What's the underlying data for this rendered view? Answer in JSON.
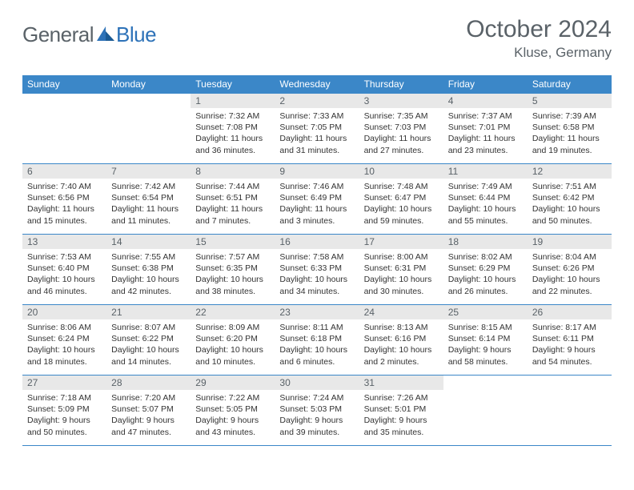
{
  "logo": {
    "general": "General",
    "blue": "Blue",
    "icon_color": "#2d72b8"
  },
  "title": {
    "month_year": "October 2024",
    "location": "Kluse, Germany"
  },
  "colors": {
    "header_bg": "#3b87c8",
    "header_text": "#ffffff",
    "daynum_bg": "#e8e8e8",
    "daynum_text": "#5a6268",
    "body_text": "#333333",
    "rule": "#3b87c8"
  },
  "day_headers": [
    "Sunday",
    "Monday",
    "Tuesday",
    "Wednesday",
    "Thursday",
    "Friday",
    "Saturday"
  ],
  "weeks": [
    [
      {
        "blank": true
      },
      {
        "blank": true
      },
      {
        "num": "1",
        "sunrise": "Sunrise: 7:32 AM",
        "sunset": "Sunset: 7:08 PM",
        "daylight": "Daylight: 11 hours and 36 minutes."
      },
      {
        "num": "2",
        "sunrise": "Sunrise: 7:33 AM",
        "sunset": "Sunset: 7:05 PM",
        "daylight": "Daylight: 11 hours and 31 minutes."
      },
      {
        "num": "3",
        "sunrise": "Sunrise: 7:35 AM",
        "sunset": "Sunset: 7:03 PM",
        "daylight": "Daylight: 11 hours and 27 minutes."
      },
      {
        "num": "4",
        "sunrise": "Sunrise: 7:37 AM",
        "sunset": "Sunset: 7:01 PM",
        "daylight": "Daylight: 11 hours and 23 minutes."
      },
      {
        "num": "5",
        "sunrise": "Sunrise: 7:39 AM",
        "sunset": "Sunset: 6:58 PM",
        "daylight": "Daylight: 11 hours and 19 minutes."
      }
    ],
    [
      {
        "num": "6",
        "sunrise": "Sunrise: 7:40 AM",
        "sunset": "Sunset: 6:56 PM",
        "daylight": "Daylight: 11 hours and 15 minutes."
      },
      {
        "num": "7",
        "sunrise": "Sunrise: 7:42 AM",
        "sunset": "Sunset: 6:54 PM",
        "daylight": "Daylight: 11 hours and 11 minutes."
      },
      {
        "num": "8",
        "sunrise": "Sunrise: 7:44 AM",
        "sunset": "Sunset: 6:51 PM",
        "daylight": "Daylight: 11 hours and 7 minutes."
      },
      {
        "num": "9",
        "sunrise": "Sunrise: 7:46 AM",
        "sunset": "Sunset: 6:49 PM",
        "daylight": "Daylight: 11 hours and 3 minutes."
      },
      {
        "num": "10",
        "sunrise": "Sunrise: 7:48 AM",
        "sunset": "Sunset: 6:47 PM",
        "daylight": "Daylight: 10 hours and 59 minutes."
      },
      {
        "num": "11",
        "sunrise": "Sunrise: 7:49 AM",
        "sunset": "Sunset: 6:44 PM",
        "daylight": "Daylight: 10 hours and 55 minutes."
      },
      {
        "num": "12",
        "sunrise": "Sunrise: 7:51 AM",
        "sunset": "Sunset: 6:42 PM",
        "daylight": "Daylight: 10 hours and 50 minutes."
      }
    ],
    [
      {
        "num": "13",
        "sunrise": "Sunrise: 7:53 AM",
        "sunset": "Sunset: 6:40 PM",
        "daylight": "Daylight: 10 hours and 46 minutes."
      },
      {
        "num": "14",
        "sunrise": "Sunrise: 7:55 AM",
        "sunset": "Sunset: 6:38 PM",
        "daylight": "Daylight: 10 hours and 42 minutes."
      },
      {
        "num": "15",
        "sunrise": "Sunrise: 7:57 AM",
        "sunset": "Sunset: 6:35 PM",
        "daylight": "Daylight: 10 hours and 38 minutes."
      },
      {
        "num": "16",
        "sunrise": "Sunrise: 7:58 AM",
        "sunset": "Sunset: 6:33 PM",
        "daylight": "Daylight: 10 hours and 34 minutes."
      },
      {
        "num": "17",
        "sunrise": "Sunrise: 8:00 AM",
        "sunset": "Sunset: 6:31 PM",
        "daylight": "Daylight: 10 hours and 30 minutes."
      },
      {
        "num": "18",
        "sunrise": "Sunrise: 8:02 AM",
        "sunset": "Sunset: 6:29 PM",
        "daylight": "Daylight: 10 hours and 26 minutes."
      },
      {
        "num": "19",
        "sunrise": "Sunrise: 8:04 AM",
        "sunset": "Sunset: 6:26 PM",
        "daylight": "Daylight: 10 hours and 22 minutes."
      }
    ],
    [
      {
        "num": "20",
        "sunrise": "Sunrise: 8:06 AM",
        "sunset": "Sunset: 6:24 PM",
        "daylight": "Daylight: 10 hours and 18 minutes."
      },
      {
        "num": "21",
        "sunrise": "Sunrise: 8:07 AM",
        "sunset": "Sunset: 6:22 PM",
        "daylight": "Daylight: 10 hours and 14 minutes."
      },
      {
        "num": "22",
        "sunrise": "Sunrise: 8:09 AM",
        "sunset": "Sunset: 6:20 PM",
        "daylight": "Daylight: 10 hours and 10 minutes."
      },
      {
        "num": "23",
        "sunrise": "Sunrise: 8:11 AM",
        "sunset": "Sunset: 6:18 PM",
        "daylight": "Daylight: 10 hours and 6 minutes."
      },
      {
        "num": "24",
        "sunrise": "Sunrise: 8:13 AM",
        "sunset": "Sunset: 6:16 PM",
        "daylight": "Daylight: 10 hours and 2 minutes."
      },
      {
        "num": "25",
        "sunrise": "Sunrise: 8:15 AM",
        "sunset": "Sunset: 6:14 PM",
        "daylight": "Daylight: 9 hours and 58 minutes."
      },
      {
        "num": "26",
        "sunrise": "Sunrise: 8:17 AM",
        "sunset": "Sunset: 6:11 PM",
        "daylight": "Daylight: 9 hours and 54 minutes."
      }
    ],
    [
      {
        "num": "27",
        "sunrise": "Sunrise: 7:18 AM",
        "sunset": "Sunset: 5:09 PM",
        "daylight": "Daylight: 9 hours and 50 minutes."
      },
      {
        "num": "28",
        "sunrise": "Sunrise: 7:20 AM",
        "sunset": "Sunset: 5:07 PM",
        "daylight": "Daylight: 9 hours and 47 minutes."
      },
      {
        "num": "29",
        "sunrise": "Sunrise: 7:22 AM",
        "sunset": "Sunset: 5:05 PM",
        "daylight": "Daylight: 9 hours and 43 minutes."
      },
      {
        "num": "30",
        "sunrise": "Sunrise: 7:24 AM",
        "sunset": "Sunset: 5:03 PM",
        "daylight": "Daylight: 9 hours and 39 minutes."
      },
      {
        "num": "31",
        "sunrise": "Sunrise: 7:26 AM",
        "sunset": "Sunset: 5:01 PM",
        "daylight": "Daylight: 9 hours and 35 minutes."
      },
      {
        "blank": true
      },
      {
        "blank": true
      }
    ]
  ]
}
